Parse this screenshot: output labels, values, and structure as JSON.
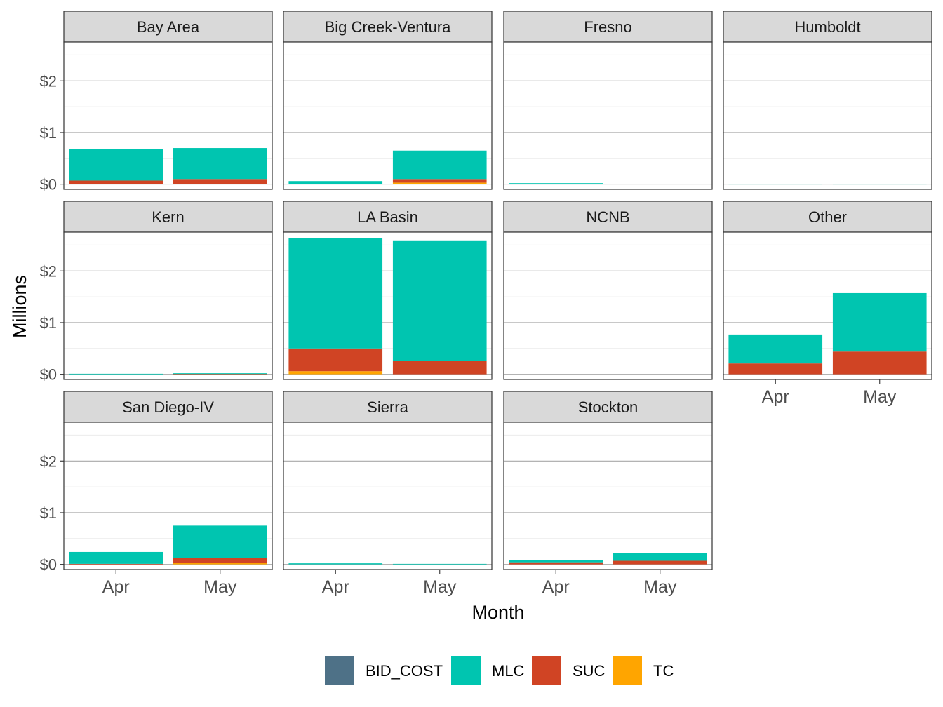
{
  "chart_data": {
    "type": "bar",
    "stacked": true,
    "faceted": true,
    "xlabel": "Month",
    "ylabel": "Millions",
    "categories": [
      "Apr",
      "May"
    ],
    "y_ticks": [
      "$0",
      "$1",
      "$2"
    ],
    "y_tick_values": [
      0,
      1,
      2
    ],
    "ylim": [
      -0.1,
      2.75
    ],
    "grid": true,
    "legend_position": "bottom",
    "legend": [
      {
        "name": "BID_COST",
        "color": "#4e7187"
      },
      {
        "name": "MLC",
        "color": "#00c5b0"
      },
      {
        "name": "SUC",
        "color": "#d04424"
      },
      {
        "name": "TC",
        "color": "#ffa500"
      }
    ],
    "series_order": [
      "BID_COST",
      "TC",
      "SUC",
      "MLC"
    ],
    "panels": [
      {
        "name": "Bay Area",
        "values": {
          "Apr": {
            "BID_COST": 0,
            "TC": 0,
            "SUC": 0.07,
            "MLC": 0.61
          },
          "May": {
            "BID_COST": 0,
            "TC": 0,
            "SUC": 0.1,
            "MLC": 0.6
          }
        }
      },
      {
        "name": "Big Creek-Ventura",
        "values": {
          "Apr": {
            "BID_COST": 0,
            "TC": 0,
            "SUC": 0,
            "MLC": 0.06
          },
          "May": {
            "BID_COST": 0,
            "TC": 0.03,
            "SUC": 0.07,
            "MLC": 0.55
          }
        }
      },
      {
        "name": "Fresno",
        "values": {
          "Apr": {
            "BID_COST": 0.01,
            "TC": 0,
            "SUC": 0,
            "MLC": 0.01
          },
          "May": {
            "BID_COST": 0,
            "TC": 0,
            "SUC": 0,
            "MLC": 0
          }
        }
      },
      {
        "name": "Humboldt",
        "values": {
          "Apr": {
            "BID_COST": 0,
            "TC": 0,
            "SUC": 0,
            "MLC": 0.005
          },
          "May": {
            "BID_COST": 0,
            "TC": 0,
            "SUC": 0,
            "MLC": 0.005
          }
        }
      },
      {
        "name": "Kern",
        "values": {
          "Apr": {
            "BID_COST": 0,
            "TC": 0,
            "SUC": 0,
            "MLC": 0.01
          },
          "May": {
            "BID_COST": 0,
            "TC": 0,
            "SUC": 0.005,
            "MLC": 0.015
          }
        }
      },
      {
        "name": "LA Basin",
        "values": {
          "Apr": {
            "BID_COST": 0,
            "TC": 0.06,
            "SUC": 0.44,
            "MLC": 2.14
          },
          "May": {
            "BID_COST": 0,
            "TC": 0,
            "SUC": 0.26,
            "MLC": 2.33
          }
        }
      },
      {
        "name": "NCNB",
        "values": {
          "Apr": {
            "BID_COST": 0,
            "TC": 0,
            "SUC": 0,
            "MLC": 0
          },
          "May": {
            "BID_COST": 0,
            "TC": 0,
            "SUC": 0,
            "MLC": 0
          }
        }
      },
      {
        "name": "Other",
        "values": {
          "Apr": {
            "BID_COST": 0,
            "TC": 0,
            "SUC": 0.21,
            "MLC": 0.56
          },
          "May": {
            "BID_COST": 0,
            "TC": 0,
            "SUC": 0.44,
            "MLC": 1.13
          }
        }
      },
      {
        "name": "San Diego-IV",
        "values": {
          "Apr": {
            "BID_COST": 0,
            "TC": 0,
            "SUC": 0.01,
            "MLC": 0.23
          },
          "May": {
            "BID_COST": 0,
            "TC": 0.03,
            "SUC": 0.09,
            "MLC": 0.63
          }
        }
      },
      {
        "name": "Sierra",
        "values": {
          "Apr": {
            "BID_COST": 0,
            "TC": 0,
            "SUC": 0,
            "MLC": 0.02
          },
          "May": {
            "BID_COST": 0,
            "TC": 0,
            "SUC": 0,
            "MLC": 0.01
          }
        }
      },
      {
        "name": "Stockton",
        "values": {
          "Apr": {
            "BID_COST": 0,
            "TC": 0,
            "SUC": 0.04,
            "MLC": 0.04
          },
          "May": {
            "BID_COST": 0,
            "TC": 0,
            "SUC": 0.07,
            "MLC": 0.15
          }
        }
      }
    ]
  }
}
